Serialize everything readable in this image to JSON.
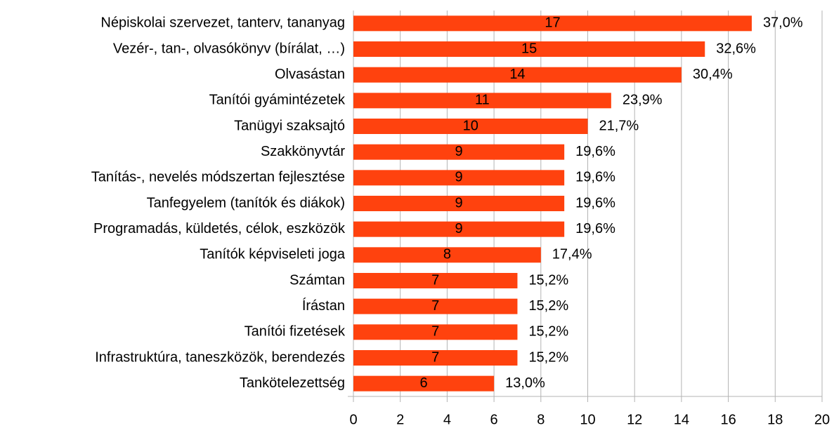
{
  "chart_data": {
    "type": "bar",
    "orientation": "horizontal",
    "categories": [
      "Népiskolai szervezet, tanterv, tananyag",
      "Vezér-, tan-, olvasókönyv (bírálat, …)",
      "Olvasástan",
      "Tanítói gyámintézetek",
      "Tanügyi szaksajtó",
      "Szakkönyvtár",
      "Tanítás-, nevelés módszertan fejlesztése",
      "Tanfegyelem (tanítók és diákok)",
      "Programadás, küldetés, célok, eszközök",
      "Tanítók képviseleti joga",
      "Számtan",
      "Írástan",
      "Tanítói fizetések",
      "Infrastruktúra, taneszközök, berendezés",
      "Tankötelezettség"
    ],
    "values": [
      17,
      15,
      14,
      11,
      10,
      9,
      9,
      9,
      9,
      8,
      7,
      7,
      7,
      7,
      6
    ],
    "percent_labels": [
      "37,0%",
      "32,6%",
      "30,4%",
      "23,9%",
      "21,7%",
      "19,6%",
      "19,6%",
      "19,6%",
      "19,6%",
      "17,4%",
      "15,2%",
      "15,2%",
      "15,2%",
      "15,2%",
      "13,0%"
    ],
    "color": "#ff420e",
    "xlim": [
      0,
      20
    ],
    "xticks": [
      0,
      2,
      4,
      6,
      8,
      10,
      12,
      14,
      16,
      18,
      20
    ],
    "grid": true
  }
}
